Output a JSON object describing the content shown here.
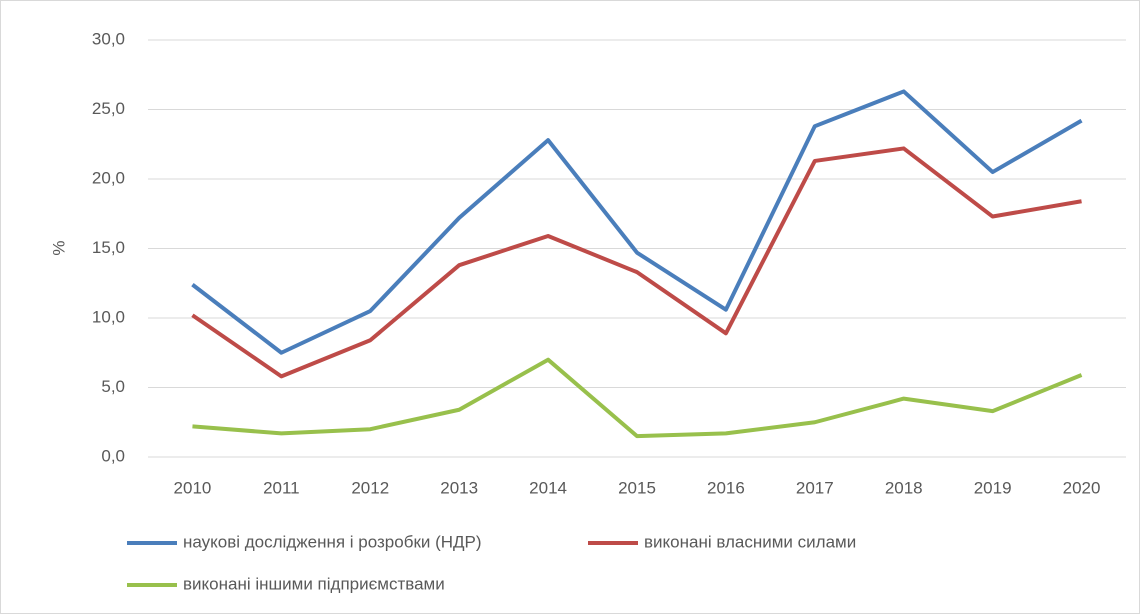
{
  "chart_data": {
    "type": "line",
    "y_label": "%",
    "categories": [
      "2010",
      "2011",
      "2012",
      "2013",
      "2014",
      "2015",
      "2016",
      "2017",
      "2018",
      "2019",
      "2020"
    ],
    "series": [
      {
        "name": "наукові дослідження і розробки  (НДР)",
        "color": "#4a7ebb",
        "values": [
          12.4,
          7.5,
          10.5,
          17.2,
          22.8,
          14.7,
          10.6,
          23.8,
          26.3,
          20.5,
          24.2
        ]
      },
      {
        "name": "виконані власними силами",
        "color": "#be4b48",
        "values": [
          10.2,
          5.8,
          8.4,
          13.8,
          15.9,
          13.3,
          8.9,
          21.3,
          22.2,
          17.3,
          18.4
        ]
      },
      {
        "name": "виконані іншими підприємствами",
        "color": "#98c04c",
        "values": [
          2.2,
          1.7,
          2.0,
          3.4,
          7.0,
          1.5,
          1.7,
          2.5,
          4.2,
          3.3,
          5.9
        ]
      }
    ],
    "ylim": [
      0,
      30
    ],
    "yticks": [
      {
        "value": 0,
        "label": "0,0"
      },
      {
        "value": 5,
        "label": "5,0"
      },
      {
        "value": 10,
        "label": "10,0"
      },
      {
        "value": 15,
        "label": "15,0"
      },
      {
        "value": 20,
        "label": "20,0"
      },
      {
        "value": 25,
        "label": "25,0"
      },
      {
        "value": 30,
        "label": "30,0"
      }
    ],
    "grid": true,
    "legend": "bottom"
  }
}
